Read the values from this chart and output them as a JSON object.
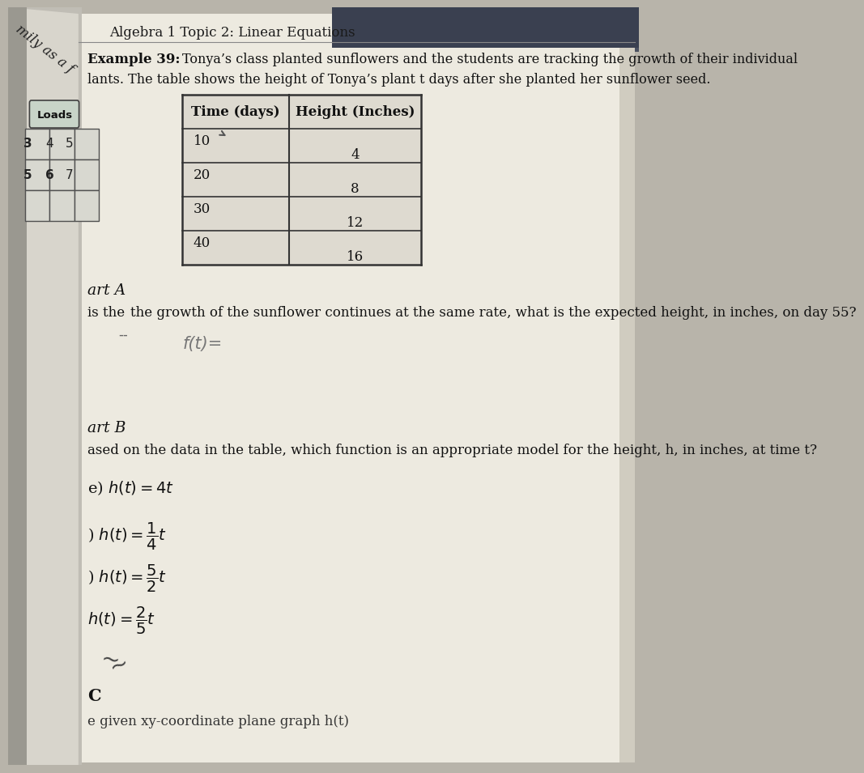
{
  "bg_color": "#b8b4aa",
  "page_color": "#e8e4d8",
  "page_right_color": "#d0ccc0",
  "title": "Algebra 1 Topic 2: Linear Equations",
  "example_line1": "Example 39: Tonya’s class planted sunflowers and the students are tracking the growth of their individual",
  "example_line2": "lants. The table shows the height of Tonya’s plant t days after she planted her sunflower seed.",
  "table_header_col1": "Time (days)",
  "table_header_col2": "Height (Inches)",
  "table_times": [
    "10",
    "20",
    "30",
    "40"
  ],
  "table_heights": [
    "4",
    "8",
    "12",
    "16"
  ],
  "part_a_label": "art A",
  "part_a_line1": "is the",
  "part_a_line2": "the growth of the sunflower continues at the same rate, what is the expected height, in inches, on day 55?",
  "dashes": "--",
  "handwritten": "f(t)=",
  "part_b_label": "art B",
  "part_b_q": "ased on the data in the table, which function is an appropriate model for the height, h, in inches, at time t?",
  "opt_a_prefix": "e) ",
  "opt_b_prefix": ") ",
  "opt_c_prefix": ") ",
  "opt_d_prefix": "",
  "bottom_c": "C",
  "bottom_text": "e given xy-coordinate plane",
  "left_top_text": "mily as a f",
  "left_sidebar_color": "#9aaa98",
  "left_dark_color": "#505850",
  "loads_label": "Loads",
  "grid_nums": [
    "3",
    "4",
    "5",
    "6",
    "7"
  ],
  "text_color": "#1a1a1a",
  "table_bg": "#e0ddd2",
  "table_border": "#333333"
}
